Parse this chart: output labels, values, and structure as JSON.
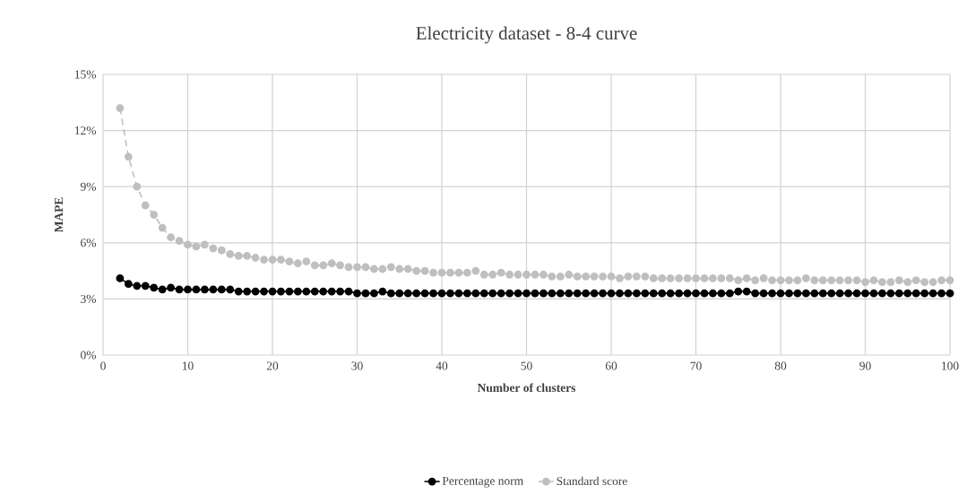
{
  "chart_data": {
    "type": "line",
    "title": "Electricity dataset - 8-4 curve",
    "xlabel": "Number of clusters",
    "ylabel": "MAPE",
    "x": [
      2,
      3,
      4,
      5,
      6,
      7,
      8,
      9,
      10,
      11,
      12,
      13,
      14,
      15,
      16,
      17,
      18,
      19,
      20,
      21,
      22,
      23,
      24,
      25,
      26,
      27,
      28,
      29,
      30,
      31,
      32,
      33,
      34,
      35,
      36,
      37,
      38,
      39,
      40,
      41,
      42,
      43,
      44,
      45,
      46,
      47,
      48,
      49,
      50,
      51,
      52,
      53,
      54,
      55,
      56,
      57,
      58,
      59,
      60,
      61,
      62,
      63,
      64,
      65,
      66,
      67,
      68,
      69,
      70,
      71,
      72,
      73,
      74,
      75,
      76,
      77,
      78,
      79,
      80,
      81,
      82,
      83,
      84,
      85,
      86,
      87,
      88,
      89,
      90,
      91,
      92,
      93,
      94,
      95,
      96,
      97,
      98,
      99,
      100
    ],
    "series": [
      {
        "name": "Percentage norm",
        "color": "#000000",
        "line_style": "solid",
        "values": [
          4.1,
          3.8,
          3.7,
          3.7,
          3.6,
          3.5,
          3.6,
          3.5,
          3.5,
          3.5,
          3.5,
          3.5,
          3.5,
          3.5,
          3.4,
          3.4,
          3.4,
          3.4,
          3.4,
          3.4,
          3.4,
          3.4,
          3.4,
          3.4,
          3.4,
          3.4,
          3.4,
          3.4,
          3.3,
          3.3,
          3.3,
          3.4,
          3.3,
          3.3,
          3.3,
          3.3,
          3.3,
          3.3,
          3.3,
          3.3,
          3.3,
          3.3,
          3.3,
          3.3,
          3.3,
          3.3,
          3.3,
          3.3,
          3.3,
          3.3,
          3.3,
          3.3,
          3.3,
          3.3,
          3.3,
          3.3,
          3.3,
          3.3,
          3.3,
          3.3,
          3.3,
          3.3,
          3.3,
          3.3,
          3.3,
          3.3,
          3.3,
          3.3,
          3.3,
          3.3,
          3.3,
          3.3,
          3.3,
          3.4,
          3.4,
          3.3,
          3.3,
          3.3,
          3.3,
          3.3,
          3.3,
          3.3,
          3.3,
          3.3,
          3.3,
          3.3,
          3.3,
          3.3,
          3.3,
          3.3,
          3.3,
          3.3,
          3.3,
          3.3,
          3.3,
          3.3,
          3.3,
          3.3,
          3.3
        ]
      },
      {
        "name": "Standard score",
        "color": "#bfbfbf",
        "line_style": "dashed",
        "values": [
          13.2,
          10.6,
          9.0,
          8.0,
          7.5,
          6.8,
          6.3,
          6.1,
          5.9,
          5.8,
          5.9,
          5.7,
          5.6,
          5.4,
          5.3,
          5.3,
          5.2,
          5.1,
          5.1,
          5.1,
          5.0,
          4.9,
          5.0,
          4.8,
          4.8,
          4.9,
          4.8,
          4.7,
          4.7,
          4.7,
          4.6,
          4.6,
          4.7,
          4.6,
          4.6,
          4.5,
          4.5,
          4.4,
          4.4,
          4.4,
          4.4,
          4.4,
          4.5,
          4.3,
          4.3,
          4.4,
          4.3,
          4.3,
          4.3,
          4.3,
          4.3,
          4.2,
          4.2,
          4.3,
          4.2,
          4.2,
          4.2,
          4.2,
          4.2,
          4.1,
          4.2,
          4.2,
          4.2,
          4.1,
          4.1,
          4.1,
          4.1,
          4.1,
          4.1,
          4.1,
          4.1,
          4.1,
          4.1,
          4.0,
          4.1,
          4.0,
          4.1,
          4.0,
          4.0,
          4.0,
          4.0,
          4.1,
          4.0,
          4.0,
          4.0,
          4.0,
          4.0,
          4.0,
          3.9,
          4.0,
          3.9,
          3.9,
          4.0,
          3.9,
          4.0,
          3.9,
          3.9,
          4.0,
          4.0
        ]
      }
    ],
    "xlim": [
      0,
      100
    ],
    "xticks": [
      0,
      10,
      20,
      30,
      40,
      50,
      60,
      70,
      80,
      90,
      100
    ],
    "ylim": [
      0,
      15
    ],
    "yticks": [
      {
        "value": 0,
        "label": "0%"
      },
      {
        "value": 3,
        "label": "3%"
      },
      {
        "value": 6,
        "label": "6%"
      },
      {
        "value": 9,
        "label": "9%"
      },
      {
        "value": 12,
        "label": "12%"
      },
      {
        "value": 15,
        "label": "15%"
      }
    ],
    "grid": true,
    "legend": "bottom",
    "marker": "circle"
  }
}
